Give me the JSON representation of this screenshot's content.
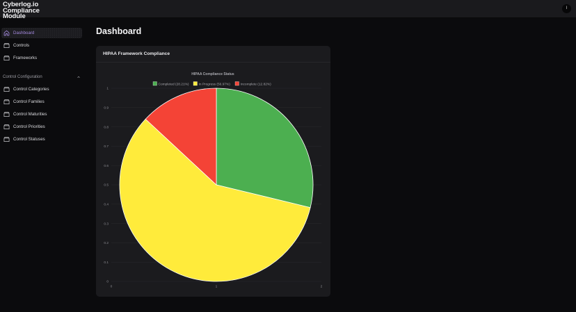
{
  "app": {
    "title": "Cyberlog.io Compliance Module",
    "title_line1": "Cyberlog.io Compliance",
    "title_line2": "Module",
    "user_initial": "I"
  },
  "sidebar": {
    "items": [
      {
        "label": "Dashboard",
        "icon": "home-icon",
        "active": true
      },
      {
        "label": "Controls",
        "icon": "folder-icon",
        "active": false
      },
      {
        "label": "Frameworks",
        "icon": "folder-icon",
        "active": false
      }
    ],
    "section": {
      "label": "Control Configuration",
      "expanded": true,
      "items": [
        {
          "label": "Control Categories",
          "icon": "folder-icon"
        },
        {
          "label": "Control Families",
          "icon": "folder-icon"
        },
        {
          "label": "Control Maturities",
          "icon": "folder-icon"
        },
        {
          "label": "Control Priorities",
          "icon": "folder-icon"
        },
        {
          "label": "Control Statuses",
          "icon": "folder-icon"
        }
      ]
    }
  },
  "main": {
    "page_title": "Dashboard",
    "card": {
      "title": "HIPAA Framework Compliance"
    }
  },
  "colors": {
    "accent": "#a58ae0",
    "completed": "#4caf50",
    "in_progress": "#ffeb3b",
    "incomplete": "#f44336"
  },
  "chart_data": {
    "type": "pie",
    "title": "HIPAA Compliance Status",
    "categories": [
      "Completed (28.21%)",
      "In Progress (56.97%)",
      "Incomplete (12.82%)"
    ],
    "labels": [
      "Completed",
      "In Progress",
      "Incomplete"
    ],
    "values": [
      28.21,
      56.97,
      12.82
    ],
    "colors": [
      "#4caf50",
      "#ffeb3b",
      "#f44336"
    ],
    "legend_position": "top",
    "grid": true,
    "y_ticks": [
      "0",
      "0.1",
      "0.2",
      "0.3",
      "0.4",
      "0.5",
      "0.6",
      "0.7",
      "0.8",
      "0.9",
      "1"
    ],
    "x_ticks": [
      "0",
      "1",
      "2"
    ],
    "ylim": [
      0,
      1
    ],
    "xlim": [
      0,
      2
    ]
  }
}
